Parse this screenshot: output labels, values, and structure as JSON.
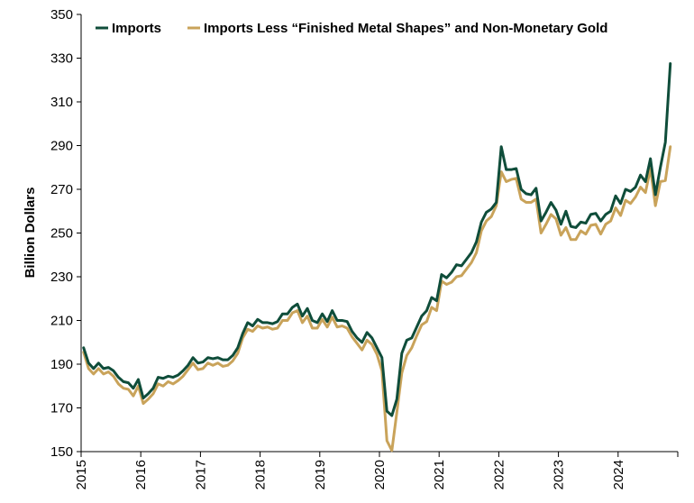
{
  "chart_data": {
    "type": "line",
    "title": "",
    "xlabel": "",
    "ylabel": "Billion Dollars",
    "ylim": [
      150,
      350
    ],
    "yticks": [
      150,
      170,
      190,
      210,
      230,
      250,
      270,
      290,
      310,
      330,
      350
    ],
    "xlim": [
      "2015-01",
      "2024-12"
    ],
    "xtick_labels": [
      "2015",
      "2016",
      "2017",
      "2018",
      "2019",
      "2020",
      "2021",
      "2022",
      "2023",
      "2024"
    ],
    "grid": false,
    "legend_position": "top",
    "x": [
      "2015-01",
      "2015-02",
      "2015-03",
      "2015-04",
      "2015-05",
      "2015-06",
      "2015-07",
      "2015-08",
      "2015-09",
      "2015-10",
      "2015-11",
      "2015-12",
      "2016-01",
      "2016-02",
      "2016-03",
      "2016-04",
      "2016-05",
      "2016-06",
      "2016-07",
      "2016-08",
      "2016-09",
      "2016-10",
      "2016-11",
      "2016-12",
      "2017-01",
      "2017-02",
      "2017-03",
      "2017-04",
      "2017-05",
      "2017-06",
      "2017-07",
      "2017-08",
      "2017-09",
      "2017-10",
      "2017-11",
      "2017-12",
      "2018-01",
      "2018-02",
      "2018-03",
      "2018-04",
      "2018-05",
      "2018-06",
      "2018-07",
      "2018-08",
      "2018-09",
      "2018-10",
      "2018-11",
      "2018-12",
      "2019-01",
      "2019-02",
      "2019-03",
      "2019-04",
      "2019-05",
      "2019-06",
      "2019-07",
      "2019-08",
      "2019-09",
      "2019-10",
      "2019-11",
      "2019-12",
      "2020-01",
      "2020-02",
      "2020-03",
      "2020-04",
      "2020-05",
      "2020-06",
      "2020-07",
      "2020-08",
      "2020-09",
      "2020-10",
      "2020-11",
      "2020-12",
      "2021-01",
      "2021-02",
      "2021-03",
      "2021-04",
      "2021-05",
      "2021-06",
      "2021-07",
      "2021-08",
      "2021-09",
      "2021-10",
      "2021-11",
      "2021-12",
      "2022-01",
      "2022-02",
      "2022-03",
      "2022-04",
      "2022-05",
      "2022-06",
      "2022-07",
      "2022-08",
      "2022-09",
      "2022-10",
      "2022-11",
      "2022-12",
      "2023-01",
      "2023-02",
      "2023-03",
      "2023-04",
      "2023-05",
      "2023-06",
      "2023-07",
      "2023-08",
      "2023-09",
      "2023-10",
      "2023-11",
      "2023-12",
      "2024-01",
      "2024-02",
      "2024-03",
      "2024-04",
      "2024-05",
      "2024-06",
      "2024-07",
      "2024-08",
      "2024-09",
      "2024-10",
      "2024-11",
      "2024-12"
    ],
    "series": [
      {
        "name": "Imports",
        "color": "#0f4d3a",
        "values": [
          197.5,
          190.5,
          188,
          190.5,
          188,
          188.5,
          187,
          184,
          182,
          181.5,
          179,
          183,
          174.5,
          176.5,
          179,
          184,
          183.5,
          184.5,
          184,
          185,
          187,
          189.5,
          193,
          190.5,
          191,
          193,
          192.5,
          193,
          192,
          192,
          194,
          197.5,
          204,
          209,
          207.5,
          210.5,
          209,
          209,
          208.5,
          209.5,
          213,
          213,
          216,
          217.5,
          212,
          215.5,
          210,
          209,
          213,
          209.5,
          214.5,
          210,
          210,
          209.5,
          205,
          202,
          200,
          204.5,
          202,
          197.5,
          193,
          168.5,
          166.5,
          174,
          195,
          201,
          202,
          207,
          212,
          214.5,
          220.5,
          219,
          231,
          229.5,
          232,
          235.5,
          235,
          238,
          241,
          246,
          255,
          259.5,
          261,
          264,
          289.5,
          279,
          279,
          279.5,
          270,
          268,
          267.5,
          270.5,
          255.5,
          259.5,
          264,
          260.5,
          254,
          260,
          253,
          252.5,
          255,
          254.5,
          258.5,
          259,
          255.5,
          258.5,
          260,
          267,
          263.5,
          270,
          269,
          271,
          276.5,
          273.5,
          284,
          267.5,
          280,
          291.5,
          327.5,
          null
        ]
      },
      {
        "name": "Imports Less “Finished Metal Shapes” and Non-Monetary Gold",
        "color": "#c9a35a",
        "values": [
          195.5,
          188,
          185.5,
          188,
          185.5,
          186.5,
          184.5,
          181,
          179,
          178.5,
          175.5,
          180,
          172,
          174,
          176.5,
          181,
          180,
          182,
          181,
          182.5,
          184.5,
          187.5,
          190.5,
          187.5,
          188,
          190.5,
          189.5,
          190.5,
          189,
          189.5,
          191.5,
          195,
          202,
          206,
          205,
          207.5,
          206.5,
          207,
          206,
          206.5,
          210,
          210,
          213.5,
          214.5,
          209,
          212,
          206.5,
          206.5,
          210.5,
          207,
          211.5,
          207,
          207.5,
          206.5,
          202.5,
          199.5,
          196.5,
          201,
          199,
          194.5,
          187,
          155,
          150.5,
          168,
          186,
          194,
          197.5,
          203,
          208,
          209.5,
          216,
          214.5,
          228,
          226.5,
          227.5,
          230,
          230.5,
          233.5,
          236.5,
          241,
          251,
          255.5,
          257.5,
          262.5,
          278,
          273.5,
          274.5,
          275,
          265.5,
          264,
          264,
          265.5,
          250,
          254,
          258.5,
          256.5,
          249,
          252.5,
          247,
          247,
          251,
          249.5,
          253.5,
          254,
          249.5,
          254,
          255.5,
          261.5,
          258,
          265,
          263.5,
          266.5,
          271,
          268.5,
          279.5,
          262.5,
          273.5,
          274,
          289.5,
          null
        ]
      }
    ]
  }
}
